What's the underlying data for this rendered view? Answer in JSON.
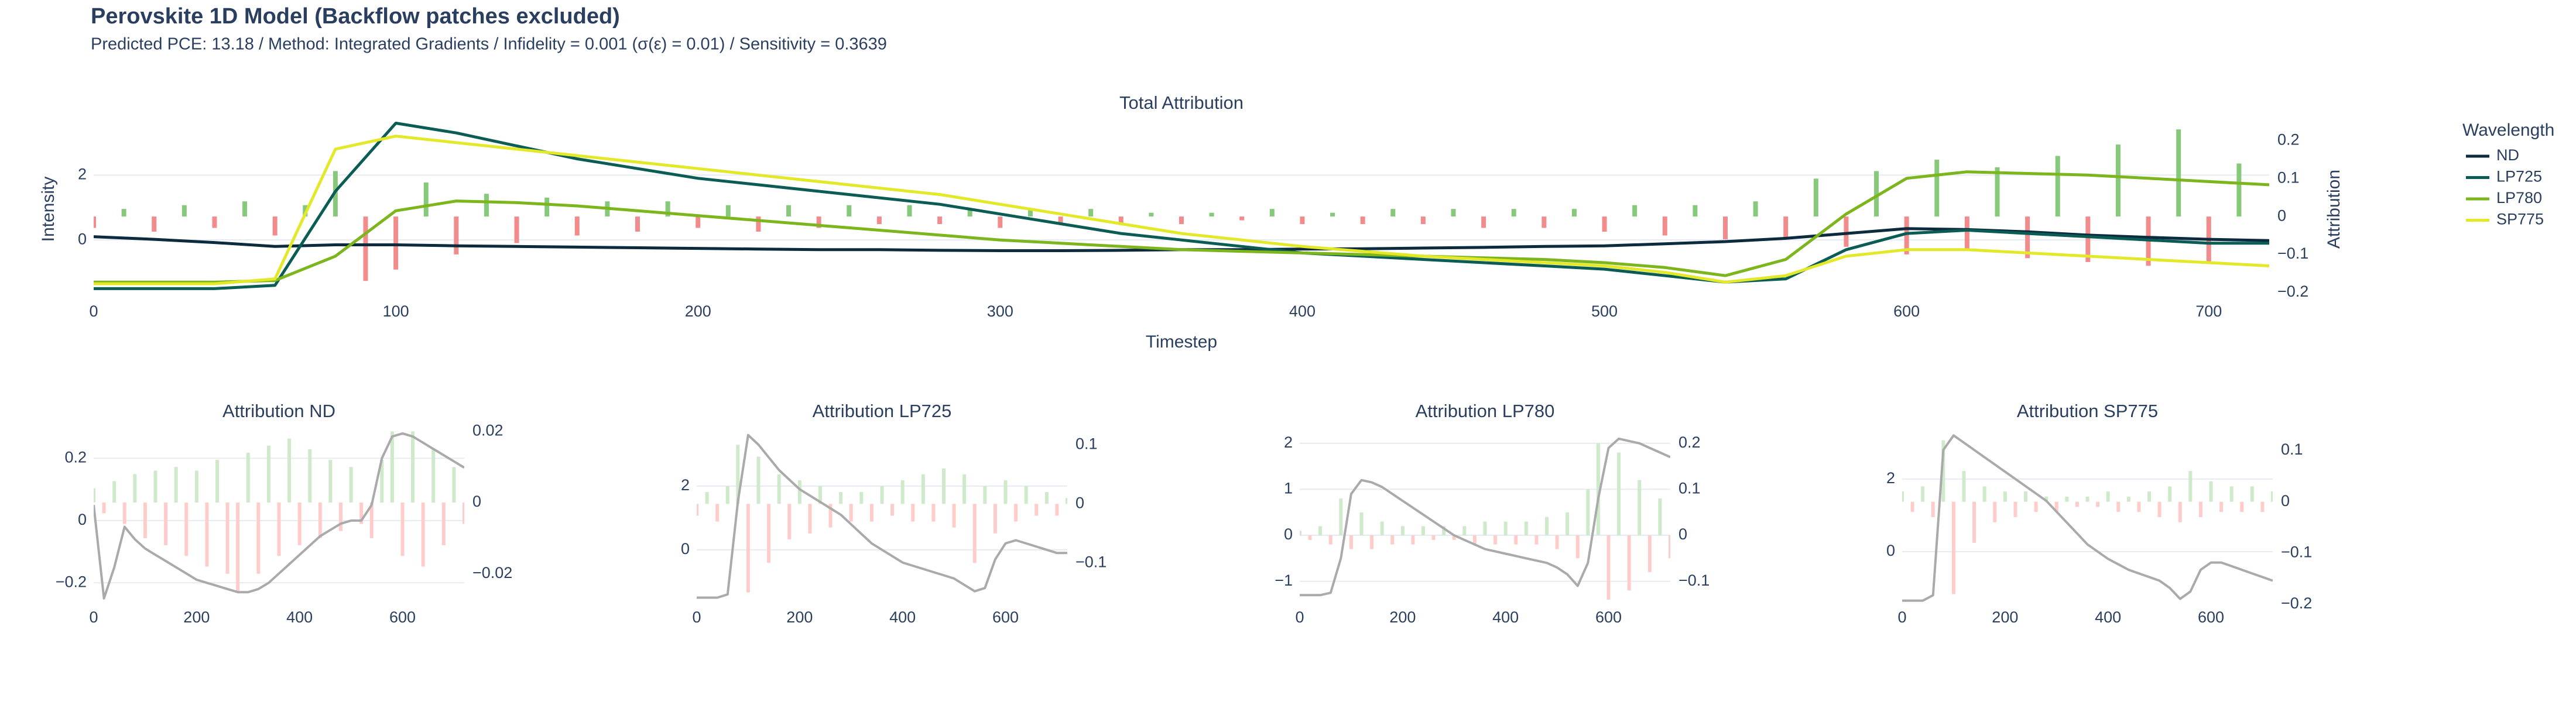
{
  "header": {
    "title": "Perovskite 1D Model (Backflow patches excluded)",
    "subtitle": "Predicted PCE: 13.18 / Method: Integrated Gradients / Infidelity = 0.001 (σ(ε) = 0.01) / Sensitivity = 0.3639"
  },
  "chart_data": [
    {
      "type": "line",
      "title": "Total Attribution",
      "x_label": "Timestep",
      "y_label": "Intensity",
      "y2_label": "Attribution",
      "x": [
        0,
        20,
        40,
        60,
        80,
        100,
        120,
        140,
        160,
        180,
        200,
        220,
        240,
        260,
        280,
        300,
        320,
        340,
        360,
        380,
        400,
        420,
        440,
        460,
        480,
        500,
        520,
        540,
        560,
        580,
        600,
        620,
        640,
        660,
        680,
        700,
        720
      ],
      "series": [
        {
          "name": "ND",
          "color": "#0d2b3e",
          "values": [
            0.1,
            0.02,
            -0.08,
            -0.2,
            -0.15,
            -0.15,
            -0.18,
            -0.2,
            -0.22,
            -0.24,
            -0.26,
            -0.28,
            -0.3,
            -0.3,
            -0.32,
            -0.33,
            -0.33,
            -0.32,
            -0.3,
            -0.3,
            -0.28,
            -0.27,
            -0.25,
            -0.23,
            -0.2,
            -0.18,
            -0.12,
            -0.05,
            0.05,
            0.2,
            0.35,
            0.32,
            0.25,
            0.15,
            0.08,
            0.02,
            -0.02
          ]
        },
        {
          "name": "LP725",
          "color": "#0a5c55",
          "values": [
            -1.5,
            -1.5,
            -1.5,
            -1.4,
            1.5,
            3.6,
            3.3,
            2.9,
            2.5,
            2.2,
            1.9,
            1.7,
            1.5,
            1.3,
            1.1,
            0.8,
            0.5,
            0.2,
            0,
            -0.2,
            -0.4,
            -0.5,
            -0.6,
            -0.7,
            -0.8,
            -0.9,
            -1.1,
            -1.3,
            -1.2,
            -0.3,
            0.2,
            0.3,
            0.2,
            0.1,
            0.0,
            -0.1,
            -0.1
          ]
        },
        {
          "name": "LP780",
          "color": "#7cb51c",
          "values": [
            -1.3,
            -1.3,
            -1.3,
            -1.25,
            -0.5,
            0.9,
            1.2,
            1.15,
            1.05,
            0.9,
            0.75,
            0.6,
            0.45,
            0.3,
            0.15,
            0.0,
            -0.1,
            -0.2,
            -0.3,
            -0.35,
            -0.4,
            -0.45,
            -0.5,
            -0.55,
            -0.6,
            -0.7,
            -0.85,
            -1.1,
            -0.6,
            0.8,
            1.9,
            2.1,
            2.05,
            2.0,
            1.9,
            1.8,
            1.7
          ]
        },
        {
          "name": "SP775",
          "color": "#e3e829",
          "values": [
            -1.35,
            -1.35,
            -1.35,
            -1.2,
            2.8,
            3.2,
            3.0,
            2.8,
            2.6,
            2.4,
            2.2,
            2.0,
            1.8,
            1.6,
            1.4,
            1.1,
            0.8,
            0.5,
            0.2,
            0,
            -0.2,
            -0.35,
            -0.5,
            -0.6,
            -0.7,
            -0.8,
            -1.0,
            -1.3,
            -1.1,
            -0.5,
            -0.3,
            -0.3,
            -0.4,
            -0.5,
            -0.6,
            -0.7,
            -0.8
          ]
        }
      ],
      "bars": {
        "axis": "y2",
        "pos_color": "#86c97a",
        "neg_color": "#f28b8b",
        "x": [
          0,
          10,
          20,
          30,
          40,
          50,
          60,
          70,
          80,
          90,
          100,
          110,
          120,
          130,
          140,
          150,
          160,
          170,
          180,
          190,
          200,
          210,
          220,
          230,
          240,
          250,
          260,
          270,
          280,
          290,
          300,
          310,
          320,
          330,
          340,
          350,
          360,
          370,
          380,
          390,
          400,
          410,
          420,
          430,
          440,
          450,
          460,
          470,
          480,
          490,
          500,
          510,
          520,
          530,
          540,
          550,
          560,
          570,
          580,
          590,
          600,
          610,
          620,
          630,
          640,
          650,
          660,
          670,
          680,
          690,
          700,
          710
        ],
        "values": [
          -0.03,
          0.02,
          -0.04,
          0.03,
          -0.03,
          0.04,
          -0.05,
          0.03,
          0.12,
          -0.17,
          -0.14,
          0.09,
          -0.1,
          0.06,
          -0.07,
          0.05,
          -0.05,
          0.04,
          -0.04,
          0.04,
          -0.03,
          0.03,
          -0.04,
          0.03,
          -0.03,
          0.03,
          -0.02,
          0.03,
          -0.02,
          0.02,
          -0.03,
          0.02,
          -0.02,
          0.02,
          -0.02,
          0.01,
          -0.02,
          0.01,
          -0.01,
          0.02,
          -0.02,
          0.01,
          -0.02,
          0.02,
          -0.02,
          0.02,
          -0.03,
          0.02,
          -0.03,
          0.02,
          -0.04,
          0.03,
          -0.05,
          0.03,
          -0.06,
          0.04,
          -0.06,
          0.1,
          -0.08,
          0.12,
          -0.1,
          0.15,
          -0.09,
          0.13,
          -0.11,
          0.16,
          -0.12,
          0.19,
          -0.13,
          0.23,
          -0.12,
          0.14
        ]
      },
      "xlim": [
        0,
        720
      ],
      "ylim": [
        -1.8,
        3.7
      ],
      "y2lim": [
        -0.216,
        0.255
      ],
      "xticks": [
        0,
        100,
        200,
        300,
        400,
        500,
        600,
        700
      ],
      "yticks": [
        0,
        2
      ],
      "y2ticks": [
        {
          "value": -0.2,
          "label": "−0.2"
        },
        {
          "value": -0.1,
          "label": "−0.1"
        },
        0,
        0.1,
        0.2
      ],
      "grid": true,
      "legend": "right",
      "legend_title": "Wavelength"
    },
    {
      "type": "line",
      "title": "Attribution ND",
      "x": [
        0,
        20,
        40,
        60,
        80,
        100,
        120,
        140,
        160,
        180,
        200,
        220,
        240,
        260,
        280,
        300,
        320,
        340,
        360,
        380,
        400,
        420,
        440,
        460,
        480,
        500,
        520,
        540,
        560,
        580,
        600,
        620,
        640,
        660,
        680,
        700,
        720
      ],
      "series": [
        {
          "color": "#aaaaaa",
          "values": [
            0.05,
            -0.25,
            -0.15,
            -0.02,
            -0.06,
            -0.09,
            -0.11,
            -0.13,
            -0.15,
            -0.17,
            -0.19,
            -0.2,
            -0.21,
            -0.22,
            -0.23,
            -0.23,
            -0.22,
            -0.2,
            -0.17,
            -0.14,
            -0.11,
            -0.08,
            -0.05,
            -0.03,
            -0.01,
            0,
            0,
            0.05,
            0.2,
            0.27,
            0.28,
            0.27,
            0.25,
            0.23,
            0.21,
            0.19,
            0.17
          ]
        }
      ],
      "bars": {
        "axis": "y2",
        "pos_color": "#cfe9cb",
        "neg_color": "#ffcccc",
        "values": [
          0.004,
          -0.003,
          0.006,
          -0.006,
          0.008,
          -0.01,
          0.009,
          -0.012,
          0.01,
          -0.015,
          0.009,
          -0.018,
          0.012,
          -0.02,
          -0.025,
          0.014,
          -0.02,
          0.016,
          -0.015,
          0.018,
          -0.012,
          0.015,
          -0.01,
          0.012,
          -0.008,
          0.01,
          -0.006,
          -0.01,
          0.012,
          0.02,
          -0.015,
          0.02,
          -0.018,
          0.015,
          -0.012,
          0.01,
          -0.006
        ]
      },
      "xlim": [
        0,
        720
      ],
      "ylim": [
        -0.269,
        0.291
      ],
      "y2lim": [
        -0.0286,
        0.0204
      ],
      "xticks": [
        0,
        200,
        400,
        600
      ],
      "yticks": [
        {
          "value": -0.2,
          "label": "−0.2"
        },
        0,
        0.2
      ],
      "y2ticks": [
        {
          "value": -0.02,
          "label": "−0.02"
        },
        0,
        0.02
      ],
      "grid": true
    },
    {
      "type": "line",
      "title": "Attribution LP725",
      "x": [
        0,
        20,
        40,
        60,
        80,
        100,
        120,
        140,
        160,
        180,
        200,
        220,
        240,
        260,
        280,
        300,
        320,
        340,
        360,
        380,
        400,
        420,
        440,
        460,
        480,
        500,
        520,
        540,
        560,
        580,
        600,
        620,
        640,
        660,
        680,
        700,
        720
      ],
      "series": [
        {
          "color": "#aaaaaa",
          "values": [
            -1.5,
            -1.5,
            -1.5,
            -1.4,
            1.5,
            3.6,
            3.3,
            2.9,
            2.5,
            2.2,
            1.9,
            1.7,
            1.5,
            1.3,
            1.1,
            0.8,
            0.5,
            0.2,
            0,
            -0.2,
            -0.4,
            -0.5,
            -0.6,
            -0.7,
            -0.8,
            -0.9,
            -1.1,
            -1.3,
            -1.2,
            -0.3,
            0.2,
            0.3,
            0.2,
            0.1,
            0.0,
            -0.1,
            -0.1
          ]
        }
      ],
      "bars": {
        "axis": "y2",
        "pos_color": "#cfe9cb",
        "neg_color": "#ffcccc",
        "values": [
          -0.02,
          0.02,
          -0.03,
          0.03,
          0.1,
          -0.15,
          0.08,
          -0.1,
          0.05,
          -0.06,
          0.04,
          -0.05,
          0.03,
          -0.04,
          0.02,
          -0.03,
          0.02,
          -0.03,
          0.03,
          -0.02,
          0.04,
          -0.03,
          0.05,
          -0.03,
          0.06,
          -0.04,
          0.05,
          -0.1,
          0.03,
          -0.05,
          0.04,
          -0.03,
          0.03,
          -0.02,
          0.02,
          -0.02,
          0.01
        ]
      },
      "xlim": [
        0,
        720
      ],
      "ylim": [
        -1.71,
        3.76
      ],
      "y2lim": [
        -0.17,
        0.125
      ],
      "xticks": [
        0,
        200,
        400,
        600
      ],
      "yticks": [
        0,
        2
      ],
      "y2ticks": [
        {
          "value": -0.1,
          "label": "−0.1"
        },
        0,
        0.1
      ],
      "grid": true
    },
    {
      "type": "line",
      "title": "Attribution LP780",
      "x": [
        0,
        20,
        40,
        60,
        80,
        100,
        120,
        140,
        160,
        180,
        200,
        220,
        240,
        260,
        280,
        300,
        320,
        340,
        360,
        380,
        400,
        420,
        440,
        460,
        480,
        500,
        520,
        540,
        560,
        580,
        600,
        620,
        640,
        660,
        680,
        700,
        720
      ],
      "series": [
        {
          "color": "#aaaaaa",
          "values": [
            -1.3,
            -1.3,
            -1.3,
            -1.25,
            -0.5,
            0.9,
            1.2,
            1.15,
            1.05,
            0.9,
            0.75,
            0.6,
            0.45,
            0.3,
            0.15,
            0.0,
            -0.1,
            -0.2,
            -0.3,
            -0.35,
            -0.4,
            -0.45,
            -0.5,
            -0.55,
            -0.6,
            -0.7,
            -0.85,
            -1.1,
            -0.6,
            0.8,
            1.9,
            2.1,
            2.05,
            2.0,
            1.9,
            1.8,
            1.7
          ]
        }
      ],
      "bars": {
        "axis": "y2",
        "pos_color": "#cfe9cb",
        "neg_color": "#ffcccc",
        "values": [
          0.01,
          -0.01,
          0.02,
          -0.02,
          0.08,
          -0.03,
          0.05,
          -0.03,
          0.03,
          -0.02,
          0.02,
          -0.02,
          0.02,
          -0.01,
          0.02,
          -0.01,
          0.02,
          -0.02,
          0.03,
          -0.02,
          0.03,
          -0.02,
          0.03,
          -0.02,
          0.04,
          -0.03,
          0.05,
          -0.05,
          0.1,
          0.2,
          -0.14,
          0.18,
          -0.12,
          0.12,
          -0.08,
          0.08,
          -0.05
        ]
      },
      "xlim": [
        0,
        720
      ],
      "ylim": [
        -1.5,
        2.29
      ],
      "y2lim": [
        -0.15,
        0.229
      ],
      "xticks": [
        0,
        200,
        400,
        600
      ],
      "yticks": [
        {
          "value": -1,
          "label": "−1"
        },
        0,
        1,
        2
      ],
      "y2ticks": [
        {
          "value": -0.1,
          "label": "−0.1"
        },
        0,
        0.1,
        0.2
      ],
      "grid": true
    },
    {
      "type": "line",
      "title": "Attribution SP775",
      "x": [
        0,
        20,
        40,
        60,
        80,
        100,
        120,
        140,
        160,
        180,
        200,
        220,
        240,
        260,
        280,
        300,
        320,
        340,
        360,
        380,
        400,
        420,
        440,
        460,
        480,
        500,
        520,
        540,
        560,
        580,
        600,
        620,
        640,
        660,
        680,
        700,
        720
      ],
      "series": [
        {
          "color": "#aaaaaa",
          "values": [
            -1.35,
            -1.35,
            -1.35,
            -1.2,
            2.8,
            3.2,
            3.0,
            2.8,
            2.6,
            2.4,
            2.2,
            2.0,
            1.8,
            1.6,
            1.4,
            1.1,
            0.8,
            0.5,
            0.2,
            0,
            -0.2,
            -0.35,
            -0.5,
            -0.6,
            -0.7,
            -0.8,
            -1.0,
            -1.3,
            -1.1,
            -0.5,
            -0.3,
            -0.3,
            -0.4,
            -0.5,
            -0.6,
            -0.7,
            -0.8
          ]
        }
      ],
      "bars": {
        "axis": "y2",
        "pos_color": "#cfe9cb",
        "neg_color": "#ffcccc",
        "values": [
          0.02,
          -0.02,
          0.03,
          -0.03,
          0.12,
          -0.18,
          0.06,
          -0.08,
          0.03,
          -0.04,
          0.02,
          -0.03,
          0.02,
          -0.02,
          0.01,
          -0.02,
          0.01,
          -0.01,
          0.01,
          -0.01,
          0.02,
          -0.02,
          0.01,
          -0.02,
          0.02,
          -0.03,
          0.03,
          -0.04,
          0.06,
          -0.03,
          0.04,
          -0.02,
          0.03,
          -0.02,
          0.03,
          -0.02,
          0.02
        ]
      },
      "xlim": [
        0,
        720
      ],
      "ylim": [
        -1.45,
        3.35
      ],
      "y2lim": [
        -0.2,
        0.14
      ],
      "xticks": [
        0,
        200,
        400,
        600
      ],
      "yticks": [
        0,
        2
      ],
      "y2ticks": [
        {
          "value": -0.2,
          "label": "−0.2"
        },
        {
          "value": -0.1,
          "label": "−0.1"
        },
        0,
        0.1
      ],
      "grid": true
    }
  ]
}
